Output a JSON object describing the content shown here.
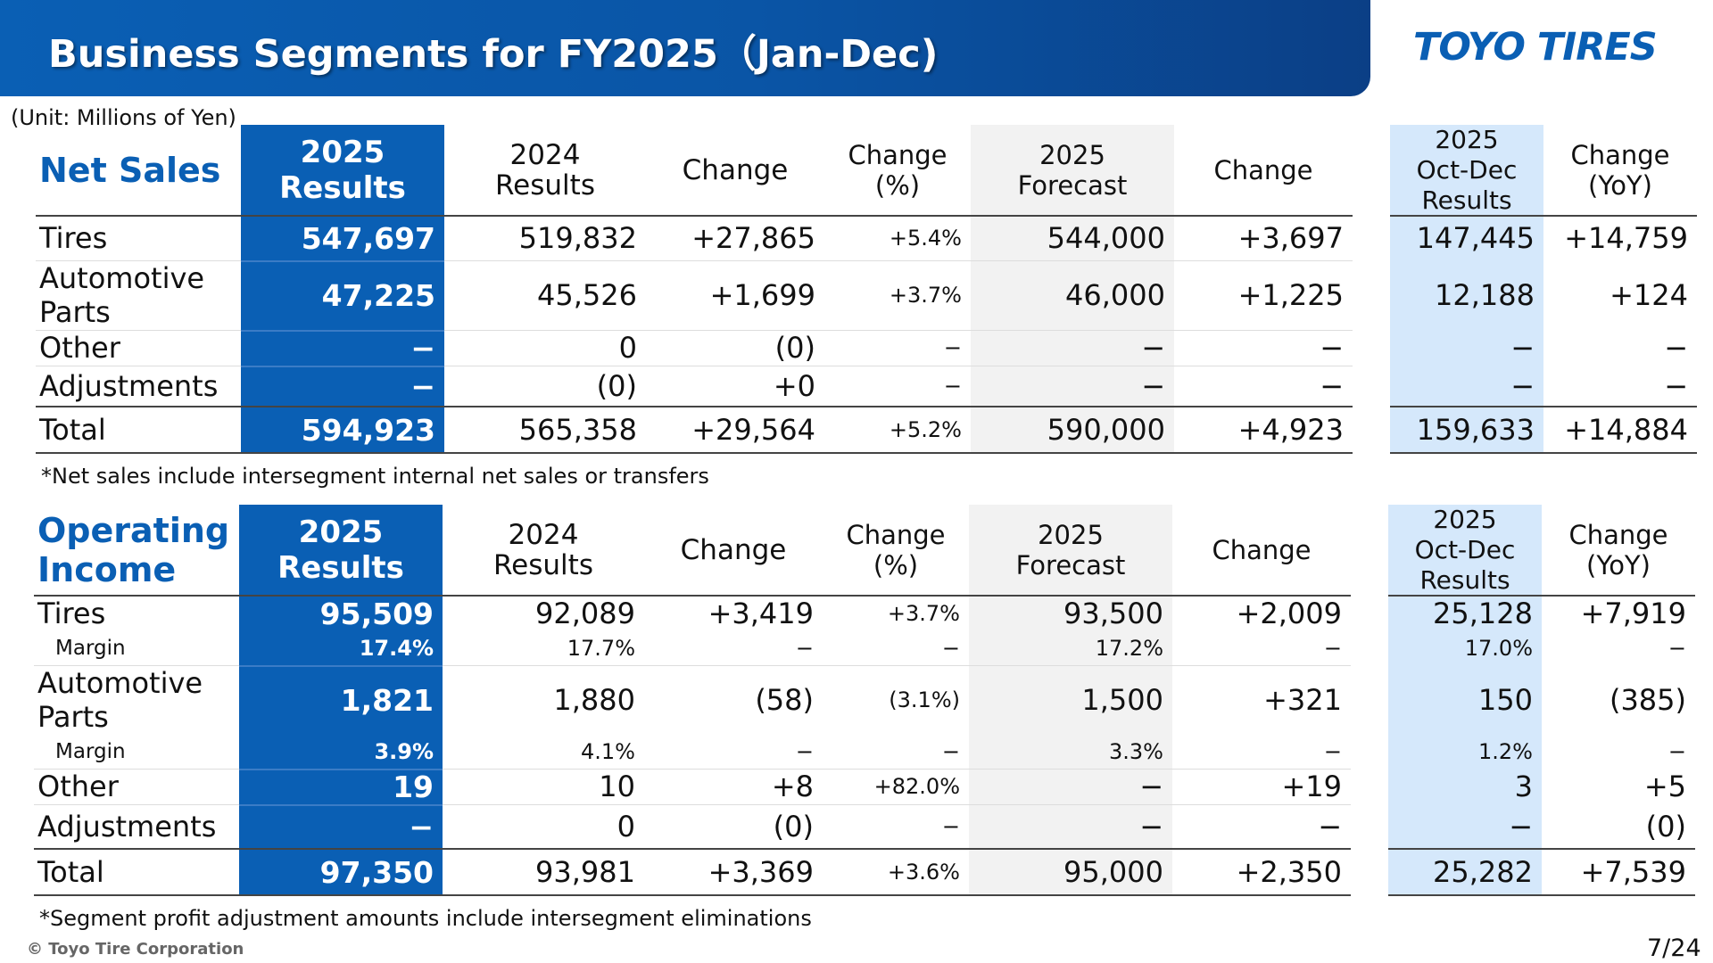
{
  "header": {
    "title": "Business Segments for FY2025（Jan-Dec)",
    "logo_text": "TOYO TIRES"
  },
  "colors": {
    "brand_blue": "#0a5fb4",
    "forecast_bg": "#f2f2f2",
    "quarter_bg": "#d5e8fb"
  },
  "unit_label": "(Unit: Millions of Yen)",
  "columns": {
    "results_2025": [
      "2025",
      "Results"
    ],
    "results_2024": [
      "2024",
      "Results"
    ],
    "change": "Change",
    "change_pct": [
      "Change",
      "(%)"
    ],
    "forecast_2025": [
      "2025",
      "Forecast"
    ],
    "change_forecast": "Change",
    "q4_2025": [
      "2025",
      "Oct-Dec",
      "Results"
    ],
    "change_yoy": [
      "Change",
      "(YoY)"
    ]
  },
  "net_sales": {
    "title": "Net Sales",
    "rows": [
      {
        "label": "Tires",
        "r2025": "547,697",
        "r2024": "519,832",
        "chg": "+27,865",
        "pct": "+5.4%",
        "fc": "544,000",
        "fchg": "+3,697",
        "q4": "147,445",
        "yoy": "+14,759"
      },
      {
        "label": "Automotive Parts",
        "r2025": "47,225",
        "r2024": "45,526",
        "chg": "+1,699",
        "pct": "+3.7%",
        "fc": "46,000",
        "fchg": "+1,225",
        "q4": "12,188",
        "yoy": "+124"
      },
      {
        "label": "Other",
        "r2025": "−",
        "r2024": "0",
        "chg": "(0)",
        "pct": "−",
        "fc": "−",
        "fchg": "−",
        "q4": "−",
        "yoy": "−"
      },
      {
        "label": "Adjustments",
        "r2025": "−",
        "r2024": "(0)",
        "chg": "+0",
        "pct": "−",
        "fc": "−",
        "fchg": "−",
        "q4": "−",
        "yoy": "−"
      },
      {
        "label": "Total",
        "r2025": "594,923",
        "r2024": "565,358",
        "chg": "+29,564",
        "pct": "+5.2%",
        "fc": "590,000",
        "fchg": "+4,923",
        "q4": "159,633",
        "yoy": "+14,884"
      }
    ],
    "note": "*Net sales include intersegment internal net sales or transfers"
  },
  "operating_income": {
    "title": "Operating Income",
    "rows": [
      {
        "label": "Tires",
        "r2025": "95,509",
        "r2024": "92,089",
        "chg": "+3,419",
        "pct": "+3.7%",
        "fc": "93,500",
        "fchg": "+2,009",
        "q4": "25,128",
        "yoy": "+7,919"
      },
      {
        "label": "Margin",
        "r2025": "17.4%",
        "r2024": "17.7%",
        "chg": "−",
        "pct": "−",
        "fc": "17.2%",
        "fchg": "−",
        "q4": "17.0%",
        "yoy": "−"
      },
      {
        "label": "Automotive Parts",
        "r2025": "1,821",
        "r2024": "1,880",
        "chg": "(58)",
        "pct": "(3.1%)",
        "fc": "1,500",
        "fchg": "+321",
        "q4": "150",
        "yoy": "(385)"
      },
      {
        "label": "Margin",
        "r2025": "3.9%",
        "r2024": "4.1%",
        "chg": "−",
        "pct": "−",
        "fc": "3.3%",
        "fchg": "−",
        "q4": "1.2%",
        "yoy": "−"
      },
      {
        "label": "Other",
        "r2025": "19",
        "r2024": "10",
        "chg": "+8",
        "pct": "+82.0%",
        "fc": "−",
        "fchg": "+19",
        "q4": "3",
        "yoy": "+5"
      },
      {
        "label": "Adjustments",
        "r2025": "−",
        "r2024": "0",
        "chg": "(0)",
        "pct": "−",
        "fc": "−",
        "fchg": "−",
        "q4": "−",
        "yoy": "(0)"
      },
      {
        "label": "Total",
        "r2025": "97,350",
        "r2024": "93,981",
        "chg": "+3,369",
        "pct": "+3.6%",
        "fc": "95,000",
        "fchg": "+2,350",
        "q4": "25,282",
        "yoy": "+7,539"
      }
    ],
    "note": "*Segment profit adjustment amounts include intersegment eliminations"
  },
  "footer": {
    "copyright": "© Toyo Tire Corporation",
    "page": "7/24"
  }
}
